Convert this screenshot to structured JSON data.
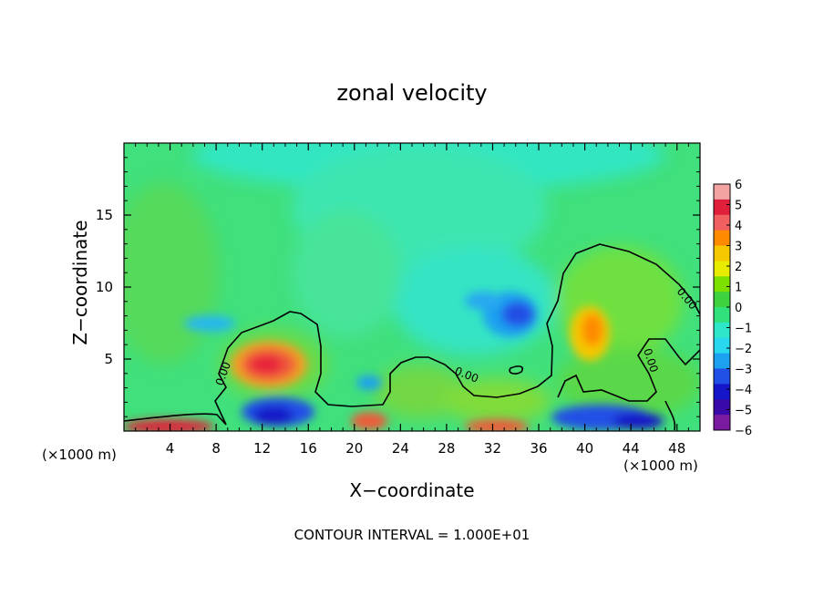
{
  "title": "zonal velocity",
  "footer": "CONTOUR INTERVAL = 1.000E+01",
  "chart_data": {
    "type": "heatmap",
    "title": "zonal velocity",
    "xlabel": "X−coordinate",
    "ylabel": "Z−coordinate",
    "x_unit_label": "(×1000 m)",
    "xlim": [
      0,
      50
    ],
    "ylim": [
      0,
      20
    ],
    "x_ticks": [
      4,
      8,
      12,
      16,
      20,
      24,
      28,
      32,
      36,
      40,
      44,
      48
    ],
    "y_ticks": [
      5,
      10,
      15
    ],
    "colorbar": {
      "ticks": [
        "6",
        "5",
        "4",
        "3",
        "2",
        "1",
        "0",
        "−1",
        "−2",
        "−3",
        "−4",
        "−5",
        "−6"
      ],
      "range": [
        -6,
        6
      ],
      "colors": [
        "#f4a3a3",
        "#e0203a",
        "#f06060",
        "#ff8a00",
        "#f5c800",
        "#e8ec00",
        "#7ee000",
        "#3fd23f",
        "#30e07a",
        "#2ee6c8",
        "#28d8ee",
        "#1ca0f0",
        "#2050e6",
        "#1416c8",
        "#3a0aa8",
        "#7a1aa0"
      ]
    },
    "contour_label": "0.00",
    "features": [
      {
        "x": 12.5,
        "z": 4.5,
        "value": 4.5
      },
      {
        "x": 14,
        "z": 1.5,
        "value": -5
      },
      {
        "x": 33,
        "z": 7.8,
        "value": -3.5
      },
      {
        "x": 30.5,
        "z": 9,
        "value": -2.5
      },
      {
        "x": 41,
        "z": 6.8,
        "value": 3.5
      },
      {
        "x": 41,
        "z": 1.0,
        "value": -4.5
      },
      {
        "x": 21,
        "z": 3.2,
        "value": -2.5
      },
      {
        "x": 7,
        "z": 7.5,
        "value": -2
      },
      {
        "x": 3.5,
        "z": 0.3,
        "value": 4
      },
      {
        "x": 31.5,
        "z": 0.3,
        "value": 4
      },
      {
        "x": 21,
        "z": 0.6,
        "value": 4
      },
      {
        "x": 45,
        "z": 0.5,
        "value": -4
      }
    ]
  }
}
